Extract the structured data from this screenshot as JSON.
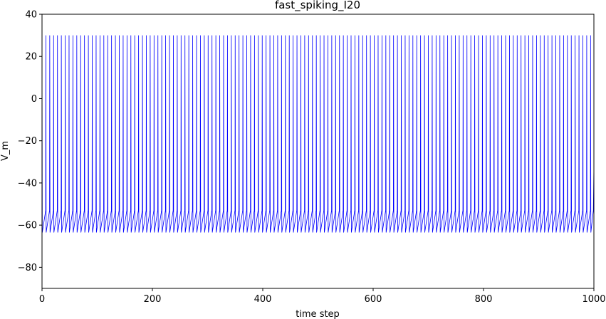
{
  "chart_data": {
    "type": "line",
    "title": "fast_spiking_I20",
    "xlabel": "time step",
    "ylabel": "V_m",
    "xlim": [
      0,
      1000
    ],
    "ylim": [
      -90,
      40
    ],
    "xticks": [
      0,
      200,
      400,
      600,
      800,
      1000
    ],
    "yticks": [
      -80,
      -60,
      -40,
      -20,
      0,
      20,
      40
    ],
    "grid": false,
    "legend": "none",
    "series": [
      {
        "color": "#0000ff",
        "spike_times": [
          0,
          7,
          14,
          21,
          28,
          35,
          42,
          49,
          56,
          63,
          70,
          77,
          84,
          91,
          98,
          105,
          112,
          119,
          126,
          133,
          140,
          147,
          154,
          161,
          168,
          175,
          182,
          189,
          196,
          203,
          210,
          217,
          224,
          231,
          238,
          245,
          252,
          259,
          266,
          273,
          280,
          287,
          294,
          301,
          308,
          315,
          322,
          329,
          336,
          343,
          350,
          357,
          364,
          371,
          378,
          385,
          392,
          399,
          406,
          413,
          420,
          427,
          434,
          441,
          448,
          455,
          462,
          469,
          476,
          483,
          490,
          497,
          504,
          511,
          518,
          525,
          532,
          539,
          546,
          553,
          560,
          567,
          574,
          581,
          588,
          595,
          602,
          609,
          616,
          623,
          630,
          637,
          644,
          651,
          658,
          665,
          672,
          679,
          686,
          693,
          700,
          707,
          714,
          721,
          728,
          735,
          742,
          749,
          756,
          763,
          770,
          777,
          784,
          791,
          798,
          805,
          812,
          819,
          826,
          833,
          840,
          847,
          854,
          861,
          868,
          875,
          882,
          889,
          896,
          903,
          910,
          917,
          924,
          931,
          938,
          945,
          952,
          959,
          966,
          973,
          980,
          987,
          994
        ],
        "spike_peak": 30,
        "reset_value": -63.5,
        "interspike_rise_to": -53,
        "initial_value": -62,
        "final_value": -32
      }
    ]
  }
}
